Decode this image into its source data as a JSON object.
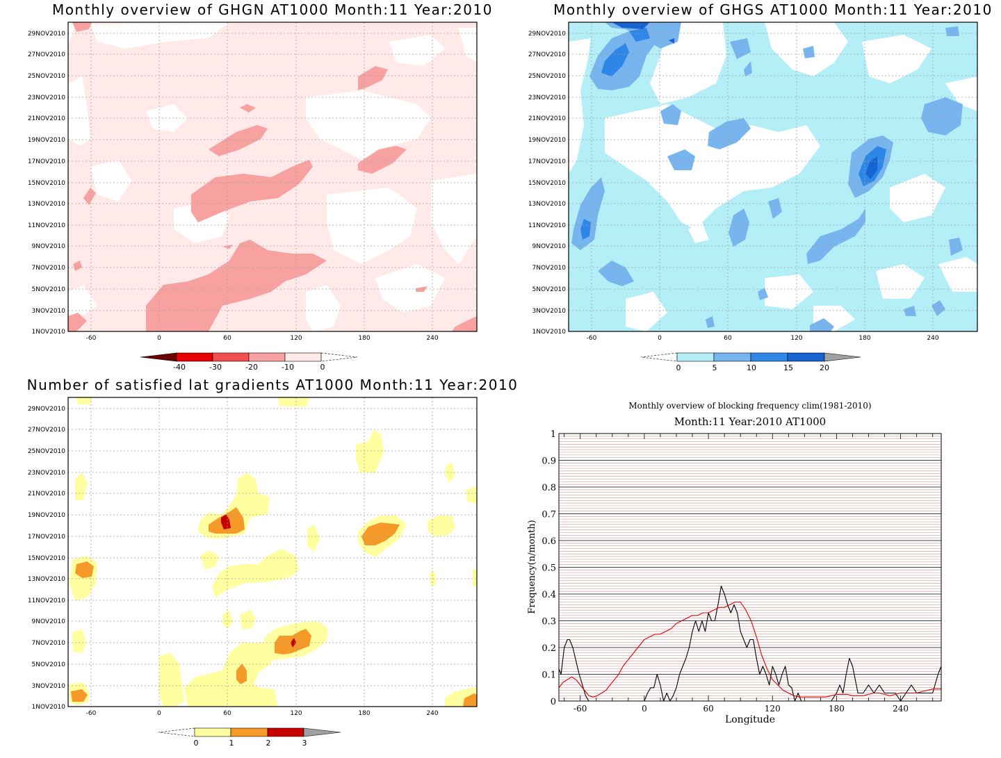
{
  "panels": {
    "ghgn": {
      "title": "Monthly overview of GHGN AT1000 Month:11 Year:2010",
      "legend": [
        "-40",
        "-30",
        "-20",
        "-10",
        "0"
      ],
      "legend_colors": [
        "#6b0000",
        "#e60000",
        "#f25050",
        "#f7a1a1",
        "#ffe9e9"
      ]
    },
    "ghgs": {
      "title": "Monthly overview of GHGS AT1000 Month:11 Year:2010",
      "legend": [
        "0",
        "5",
        "10",
        "15",
        "20"
      ],
      "legend_colors": [
        "#b4eef6",
        "#78b4ee",
        "#2e86e6",
        "#1564d2",
        "#a0a0a0"
      ]
    },
    "lat": {
      "title": "Number of satisfied lat gradients AT1000 Month:11 Year:2010",
      "legend": [
        "0",
        "1",
        "2",
        "3"
      ],
      "legend_colors": [
        "#ffffa0",
        "#f59a28",
        "#c80000",
        "#a0a0a0"
      ]
    },
    "freq": {
      "title_line1": "Monthly overview of blocking frequency clim(1981-2010)",
      "title_line2": "Month:11 Year:2010  AT1000",
      "xlabel": "Longitude",
      "ylabel": "Frequency(n/month)"
    }
  },
  "date_ticks": [
    "1NOV2010",
    "3NOV2010",
    "5NOV2010",
    "7NOV2010",
    "9NOV2010",
    "11NOV2010",
    "13NOV2010",
    "15NOV2010",
    "17NOV2010",
    "19NOV2010",
    "21NOV2010",
    "23NOV2010",
    "25NOV2010",
    "27NOV2010",
    "29NOV2010"
  ],
  "lon_ticks": [
    "-60",
    "0",
    "60",
    "120",
    "180",
    "240"
  ],
  "chart_data": [
    {
      "type": "heatmap",
      "title": "Monthly overview of GHGN AT1000 Month:11 Year:2010",
      "x_ticks": [
        -60,
        0,
        60,
        120,
        180,
        240
      ],
      "xlim": [
        -70,
        270
      ],
      "y_ticks": [
        "1NOV2010",
        "3NOV2010",
        "5NOV2010",
        "7NOV2010",
        "9NOV2010",
        "11NOV2010",
        "13NOV2010",
        "15NOV2010",
        "17NOV2010",
        "19NOV2010",
        "21NOV2010",
        "23NOV2010",
        "25NOV2010",
        "27NOV2010",
        "29NOV2010"
      ],
      "legend_levels": [
        -40,
        -30,
        -20,
        -10,
        0
      ],
      "colors": {
        "0_to_-10": "#ffe9e9",
        "-10_to_-20": "#f7a1a1"
      }
    },
    {
      "type": "heatmap",
      "title": "Monthly overview of GHGS AT1000 Month:11 Year:2010",
      "x_ticks": [
        -60,
        0,
        60,
        120,
        180,
        240
      ],
      "xlim": [
        -70,
        270
      ],
      "legend_levels": [
        0,
        5,
        10,
        15,
        20
      ],
      "colors": {
        "0-5": "#b4eef6",
        "5-10": "#78b4ee",
        "10-15": "#2e86e6",
        "15-20": "#1564d2"
      }
    },
    {
      "type": "heatmap",
      "title": "Number of satisfied lat gradients AT1000 Month:11 Year:2010",
      "x_ticks": [
        -60,
        0,
        60,
        120,
        180,
        240
      ],
      "xlim": [
        -70,
        270
      ],
      "legend_levels": [
        0,
        1,
        2,
        3
      ],
      "colors": {
        "0-1": "#ffffa0",
        "1-2": "#f59a28",
        "2-3": "#c80000"
      }
    },
    {
      "type": "line",
      "title": "Monthly overview of blocking frequency clim(1981-2010)",
      "subtitle": "Month:11 Year:2010  AT1000",
      "xlabel": "Longitude",
      "ylabel": "Frequency(n/month)",
      "xlim": [
        -80,
        278
      ],
      "ylim": [
        0,
        1
      ],
      "y_ticks": [
        0,
        0.1,
        0.2,
        0.3,
        0.4,
        0.5,
        0.6,
        0.7,
        0.8,
        0.9,
        1
      ],
      "x_ticks": [
        -60,
        0,
        60,
        120,
        180,
        240
      ],
      "series": [
        {
          "color": "#000000",
          "x": [
            -80,
            -78,
            -75,
            -72,
            -70,
            -67,
            -64,
            -61,
            -58,
            -55,
            -52,
            -49,
            -46,
            -43,
            -40,
            -35,
            -30,
            -25,
            -20,
            -15,
            -10,
            -5,
            0,
            3,
            6,
            9,
            12,
            15,
            18,
            21,
            24,
            27,
            30,
            33,
            36,
            39,
            42,
            45,
            48,
            51,
            54,
            57,
            60,
            63,
            66,
            69,
            72,
            75,
            78,
            81,
            84,
            87,
            90,
            93,
            96,
            99,
            102,
            105,
            108,
            111,
            114,
            117,
            120,
            123,
            126,
            129,
            132,
            135,
            138,
            141,
            144,
            147,
            150,
            155,
            160,
            165,
            170,
            175,
            180,
            183,
            186,
            189,
            192,
            195,
            200,
            205,
            210,
            215,
            220,
            225,
            230,
            235,
            240,
            245,
            250,
            255,
            260,
            265,
            270,
            275,
            278
          ],
          "y": [
            0.12,
            0.1,
            0.2,
            0.23,
            0.23,
            0.2,
            0.15,
            0.1,
            0.06,
            0.02,
            0,
            0,
            0,
            0,
            0,
            0,
            0,
            0,
            0,
            0,
            0,
            0,
            0,
            0.03,
            0.05,
            0.05,
            0.1,
            0.06,
            0,
            0.03,
            0,
            0.02,
            0.05,
            0.1,
            0.13,
            0.16,
            0.2,
            0.26,
            0.3,
            0.26,
            0.3,
            0.26,
            0.33,
            0.3,
            0.3,
            0.36,
            0.43,
            0.4,
            0.36,
            0.33,
            0.36,
            0.33,
            0.26,
            0.23,
            0.2,
            0.23,
            0.23,
            0.16,
            0.1,
            0.13,
            0.1,
            0.06,
            0.13,
            0.1,
            0.06,
            0.1,
            0.13,
            0.06,
            0.05,
            0,
            0.03,
            0,
            0,
            0,
            0,
            0,
            0,
            0,
            0.03,
            0.06,
            0.03,
            0.1,
            0.16,
            0.13,
            0.03,
            0.03,
            0.06,
            0.03,
            0.06,
            0.03,
            0.03,
            0.03,
            0,
            0.03,
            0.06,
            0.03,
            0.03,
            0.03,
            0.03,
            0.1,
            0.13
          ]
        },
        {
          "color": "#e00000",
          "x": [
            -80,
            -76,
            -72,
            -68,
            -64,
            -60,
            -56,
            -52,
            -48,
            -44,
            -40,
            -36,
            -32,
            -28,
            -24,
            -20,
            -16,
            -12,
            -8,
            -4,
            0,
            5,
            10,
            15,
            20,
            25,
            30,
            35,
            40,
            45,
            50,
            55,
            60,
            65,
            70,
            75,
            80,
            85,
            90,
            95,
            100,
            105,
            110,
            115,
            120,
            125,
            130,
            135,
            140,
            145,
            150,
            155,
            160,
            165,
            170,
            175,
            180,
            185,
            190,
            195,
            200,
            205,
            210,
            215,
            220,
            225,
            230,
            235,
            240,
            245,
            250,
            255,
            260,
            265,
            270,
            275,
            278
          ],
          "y": [
            0.05,
            0.07,
            0.08,
            0.09,
            0.08,
            0.06,
            0.04,
            0.02,
            0.015,
            0.02,
            0.03,
            0.04,
            0.06,
            0.08,
            0.1,
            0.13,
            0.15,
            0.17,
            0.19,
            0.21,
            0.23,
            0.24,
            0.25,
            0.25,
            0.26,
            0.27,
            0.29,
            0.3,
            0.31,
            0.32,
            0.32,
            0.33,
            0.33,
            0.34,
            0.35,
            0.35,
            0.36,
            0.37,
            0.37,
            0.34,
            0.3,
            0.24,
            0.17,
            0.12,
            0.08,
            0.06,
            0.04,
            0.03,
            0.02,
            0.015,
            0.015,
            0.015,
            0.015,
            0.015,
            0.015,
            0.02,
            0.025,
            0.025,
            0.025,
            0.02,
            0.02,
            0.02,
            0.025,
            0.03,
            0.03,
            0.025,
            0.02,
            0.025,
            0.03,
            0.03,
            0.03,
            0.03,
            0.035,
            0.04,
            0.045,
            0.045,
            0.045
          ]
        }
      ]
    }
  ]
}
